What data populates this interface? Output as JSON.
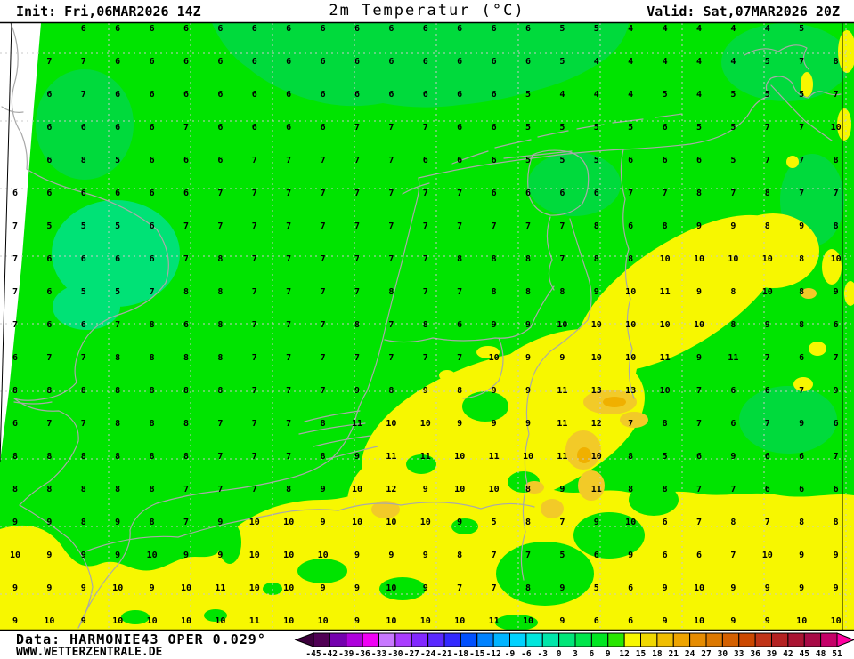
{
  "header": {
    "init_label": "Init: Fri,06MAR2026 14Z",
    "title": "2m Temperatur (°C)",
    "valid_label": "Valid: Sat,07MAR2026 20Z"
  },
  "footer": {
    "data_label": "Data: HARMONIE43 OPER 0.029°",
    "website": "WWW.WETTERZENTRALE.DE"
  },
  "map": {
    "colors": {
      "green": "#00e400",
      "green2": "#00da3c",
      "teal": "#00e276",
      "yellow": "#f7f700",
      "gold": "#f2ca28",
      "orange": "#f0b000",
      "coast": "#a9a9a9",
      "gridline": "#c9c9c9",
      "frame": "#000000",
      "number": "#000000"
    },
    "temperature_grid": {
      "unit": "°C",
      "rows": [
        ". . 6 6 6 6 6 6 6 6 6 6 6 6 6 6 5 5 4 4 4 4 4 5 .",
        ". 7 7 6 6 6 6 6 6 6 6 6 6 6 6 6 5 4 4 4 4 4 5 7 8",
        ". 6 7 6 6 6 6 6 6 6 6 6 6 6 6 5 4 4 4 5 4 5 5 5 7",
        ". 6 6 6 6 7 6 6 6 6 7 7 7 6 6 5 5 5 5 6 5 5 7 7 10",
        ". 6 8 5 6 6 6 7 7 7 7 7 6 6 6 5 5 5 6 6 6 5 7 7 8",
        "6 6 6 6 6 6 7 7 7 7 7 7 7 7 6 6 6 6 7 7 8 7 8 7 7",
        "7 5 5 5 6 7 7 7 7 7 7 7 7 7 7 7 7 8 6 8 9 9 8 9 8",
        "7 6 6 6 6 7 8 7 7 7 7 7 7 8 8 8 7 8 8 10 10 10 10 8 10",
        "7 6 5 5 7 8 8 7 7 7 7 8 7 7 8 8 8 9 10 11 9 8 10 8 9",
        "7 6 6 7 8 6 8 7 7 7 8 7 8 6 9 9 10 10 10 10 10 8 9 8 6",
        "6 7 7 8 8 8 8 7 7 7 7 7 7 7 10 9 9 10 10 11 9 11 7 6 7",
        "8 8 8 8 8 8 8 7 7 7 9 8 9 8 9 9 11 13 13 10 7 6 6 7 9",
        "6 7 7 8 8 8 7 7 7 8 11 10 10 9 9 9 11 12 7 8 7 6 7 9 6",
        "8 8 8 8 8 8 7 7 7 8 9 11 11 10 11 10 11 10 8 5 6 9 6 6 7",
        "8 8 8 8 8 7 7 7 8 9 10 12 9 10 10 8 9 11 8 8 7 7 6 6 6",
        "9 9 8 9 8 7 9 10 10 9 10 10 10 9 5 8 7 9 10 6 7 8 7 8 8",
        "10 9 9 9 10 9 9 10 10 10 9 9 9 8 7 7 5 6 9 6 6 7 10 9 9",
        "9 9 9 10 9 10 11 10 10 9 9 10 9 7 7 8 9 5 6 9 10 9 9 9 9",
        "9 10 9 10 10 10 10 11 10 10 9 10 10 10 11 10 9 6 6 9 10 9 9 10 10"
      ]
    }
  },
  "colorbar": {
    "tick_labels": [
      -45,
      -42,
      -39,
      -36,
      -33,
      -30,
      -27,
      -24,
      -21,
      -18,
      -15,
      -12,
      -9,
      -6,
      -3,
      0,
      3,
      6,
      9,
      12,
      15,
      18,
      21,
      24,
      27,
      30,
      33,
      36,
      39,
      42,
      45,
      48,
      51
    ],
    "box_colors": [
      "#500055",
      "#7400ae",
      "#ae00dc",
      "#f000f5",
      "#c878ff",
      "#aa3cff",
      "#8228ff",
      "#5a28ff",
      "#3228ff",
      "#0050ff",
      "#0082ff",
      "#00b4ff",
      "#00d2ff",
      "#00e6dc",
      "#00e6aa",
      "#00e678",
      "#00e64b",
      "#00e621",
      "#28e600",
      "#f7f700",
      "#f0d800",
      "#f0be00",
      "#eea400",
      "#e68c00",
      "#dc7800",
      "#d46000",
      "#cc4800",
      "#c03418",
      "#b42222",
      "#aa1432",
      "#a80a46",
      "#c40068"
    ],
    "left_arrow_color": "#3c003c",
    "right_arrow_color": "#ff00a0"
  }
}
